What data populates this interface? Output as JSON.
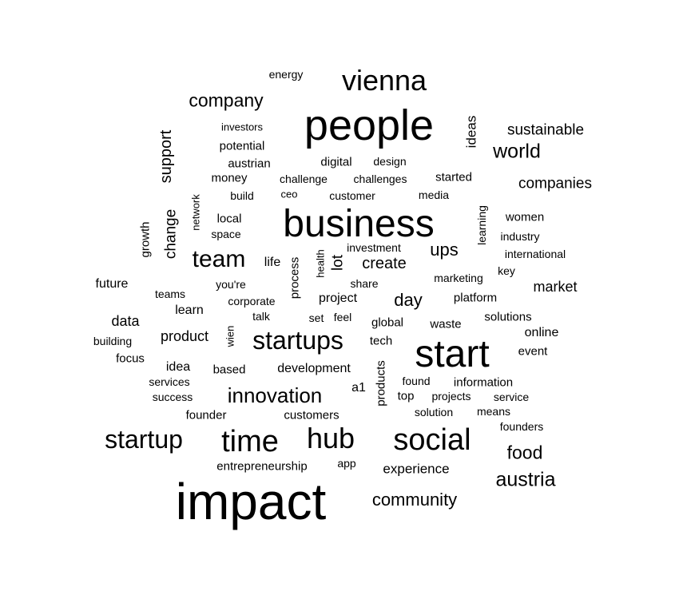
{
  "chart_data": {
    "type": "wordcloud",
    "title": "",
    "color": "#000000",
    "words": [
      {
        "text": "impact",
        "size": 64,
        "rotated": false
      },
      {
        "text": "people",
        "size": 54,
        "rotated": false
      },
      {
        "text": "business",
        "size": 48,
        "rotated": false
      },
      {
        "text": "start",
        "size": 48,
        "rotated": false
      },
      {
        "text": "time",
        "size": 38,
        "rotated": false
      },
      {
        "text": "social",
        "size": 38,
        "rotated": false
      },
      {
        "text": "hub",
        "size": 36,
        "rotated": false
      },
      {
        "text": "vienna",
        "size": 36,
        "rotated": false
      },
      {
        "text": "startup",
        "size": 32,
        "rotated": false
      },
      {
        "text": "startups",
        "size": 32,
        "rotated": false
      },
      {
        "text": "team",
        "size": 30,
        "rotated": false
      },
      {
        "text": "innovation",
        "size": 26,
        "rotated": false
      },
      {
        "text": "austria",
        "size": 25,
        "rotated": false
      },
      {
        "text": "world",
        "size": 25,
        "rotated": false
      },
      {
        "text": "company",
        "size": 23,
        "rotated": false
      },
      {
        "text": "food",
        "size": 23,
        "rotated": false
      },
      {
        "text": "community",
        "size": 22,
        "rotated": false
      },
      {
        "text": "ups",
        "size": 22,
        "rotated": false
      },
      {
        "text": "day",
        "size": 22,
        "rotated": false
      },
      {
        "text": "create",
        "size": 20,
        "rotated": false
      },
      {
        "text": "sustainable",
        "size": 19,
        "rotated": false
      },
      {
        "text": "companies",
        "size": 19,
        "rotated": false
      },
      {
        "text": "market",
        "size": 18,
        "rotated": false
      },
      {
        "text": "support",
        "size": 20,
        "rotated": true
      },
      {
        "text": "change",
        "size": 19,
        "rotated": true
      },
      {
        "text": "lot",
        "size": 19,
        "rotated": true
      },
      {
        "text": "experience",
        "size": 17,
        "rotated": false
      },
      {
        "text": "data",
        "size": 18,
        "rotated": false
      },
      {
        "text": "product",
        "size": 18,
        "rotated": false
      },
      {
        "text": "ideas",
        "size": 17,
        "rotated": true
      },
      {
        "text": "development",
        "size": 16,
        "rotated": false
      },
      {
        "text": "project",
        "size": 16,
        "rotated": false
      },
      {
        "text": "future",
        "size": 16,
        "rotated": false
      },
      {
        "text": "idea",
        "size": 16,
        "rotated": false
      },
      {
        "text": "online",
        "size": 16,
        "rotated": false
      },
      {
        "text": "customers",
        "size": 15,
        "rotated": false
      },
      {
        "text": "learn",
        "size": 16,
        "rotated": false
      },
      {
        "text": "platform",
        "size": 15,
        "rotated": false
      },
      {
        "text": "information",
        "size": 15,
        "rotated": false
      },
      {
        "text": "life",
        "size": 16,
        "rotated": false
      },
      {
        "text": "local",
        "size": 15,
        "rotated": false
      },
      {
        "text": "potential",
        "size": 15,
        "rotated": false
      },
      {
        "text": "austrian",
        "size": 15,
        "rotated": false
      },
      {
        "text": "money",
        "size": 15,
        "rotated": false
      },
      {
        "text": "digital",
        "size": 15,
        "rotated": false
      },
      {
        "text": "started",
        "size": 15,
        "rotated": false
      },
      {
        "text": "global",
        "size": 15,
        "rotated": false
      },
      {
        "text": "solutions",
        "size": 15,
        "rotated": false
      },
      {
        "text": "event",
        "size": 15,
        "rotated": false
      },
      {
        "text": "women",
        "size": 15,
        "rotated": false
      },
      {
        "text": "process",
        "size": 15,
        "rotated": true
      },
      {
        "text": "products",
        "size": 15,
        "rotated": true
      },
      {
        "text": "growth",
        "size": 15,
        "rotated": true
      },
      {
        "text": "learning",
        "size": 14,
        "rotated": true
      },
      {
        "text": "based",
        "size": 15,
        "rotated": false
      },
      {
        "text": "founder",
        "size": 15,
        "rotated": false
      },
      {
        "text": "entrepreneurship",
        "size": 15,
        "rotated": false
      },
      {
        "text": "waste",
        "size": 15,
        "rotated": false
      },
      {
        "text": "a1",
        "size": 16,
        "rotated": false
      },
      {
        "text": "top",
        "size": 15,
        "rotated": false
      },
      {
        "text": "focus",
        "size": 15,
        "rotated": false
      },
      {
        "text": "tech",
        "size": 15,
        "rotated": false
      },
      {
        "text": "challenge",
        "size": 14,
        "rotated": false
      },
      {
        "text": "challenges",
        "size": 14,
        "rotated": false
      },
      {
        "text": "design",
        "size": 14,
        "rotated": false
      },
      {
        "text": "investors",
        "size": 13,
        "rotated": false
      },
      {
        "text": "energy",
        "size": 14,
        "rotated": false
      },
      {
        "text": "build",
        "size": 14,
        "rotated": false
      },
      {
        "text": "ceo",
        "size": 13,
        "rotated": false
      },
      {
        "text": "customer",
        "size": 14,
        "rotated": false
      },
      {
        "text": "media",
        "size": 14,
        "rotated": false
      },
      {
        "text": "industry",
        "size": 14,
        "rotated": false
      },
      {
        "text": "international",
        "size": 14,
        "rotated": false
      },
      {
        "text": "key",
        "size": 14,
        "rotated": false
      },
      {
        "text": "marketing",
        "size": 14,
        "rotated": false
      },
      {
        "text": "investment",
        "size": 14,
        "rotated": false
      },
      {
        "text": "share",
        "size": 14,
        "rotated": false
      },
      {
        "text": "space",
        "size": 14,
        "rotated": false
      },
      {
        "text": "teams",
        "size": 14,
        "rotated": false
      },
      {
        "text": "you're",
        "size": 14,
        "rotated": false
      },
      {
        "text": "corporate",
        "size": 14,
        "rotated": false
      },
      {
        "text": "talk",
        "size": 14,
        "rotated": false
      },
      {
        "text": "set",
        "size": 14,
        "rotated": false
      },
      {
        "text": "feel",
        "size": 14,
        "rotated": false
      },
      {
        "text": "building",
        "size": 14,
        "rotated": false
      },
      {
        "text": "services",
        "size": 14,
        "rotated": false
      },
      {
        "text": "success",
        "size": 14,
        "rotated": false
      },
      {
        "text": "found",
        "size": 14,
        "rotated": false
      },
      {
        "text": "projects",
        "size": 14,
        "rotated": false
      },
      {
        "text": "service",
        "size": 14,
        "rotated": false
      },
      {
        "text": "solution",
        "size": 14,
        "rotated": false
      },
      {
        "text": "means",
        "size": 14,
        "rotated": false
      },
      {
        "text": "founders",
        "size": 14,
        "rotated": false
      },
      {
        "text": "app",
        "size": 14,
        "rotated": false
      },
      {
        "text": "network",
        "size": 13,
        "rotated": true
      },
      {
        "text": "health",
        "size": 13,
        "rotated": true
      },
      {
        "text": "wien",
        "size": 13,
        "rotated": true
      }
    ]
  }
}
